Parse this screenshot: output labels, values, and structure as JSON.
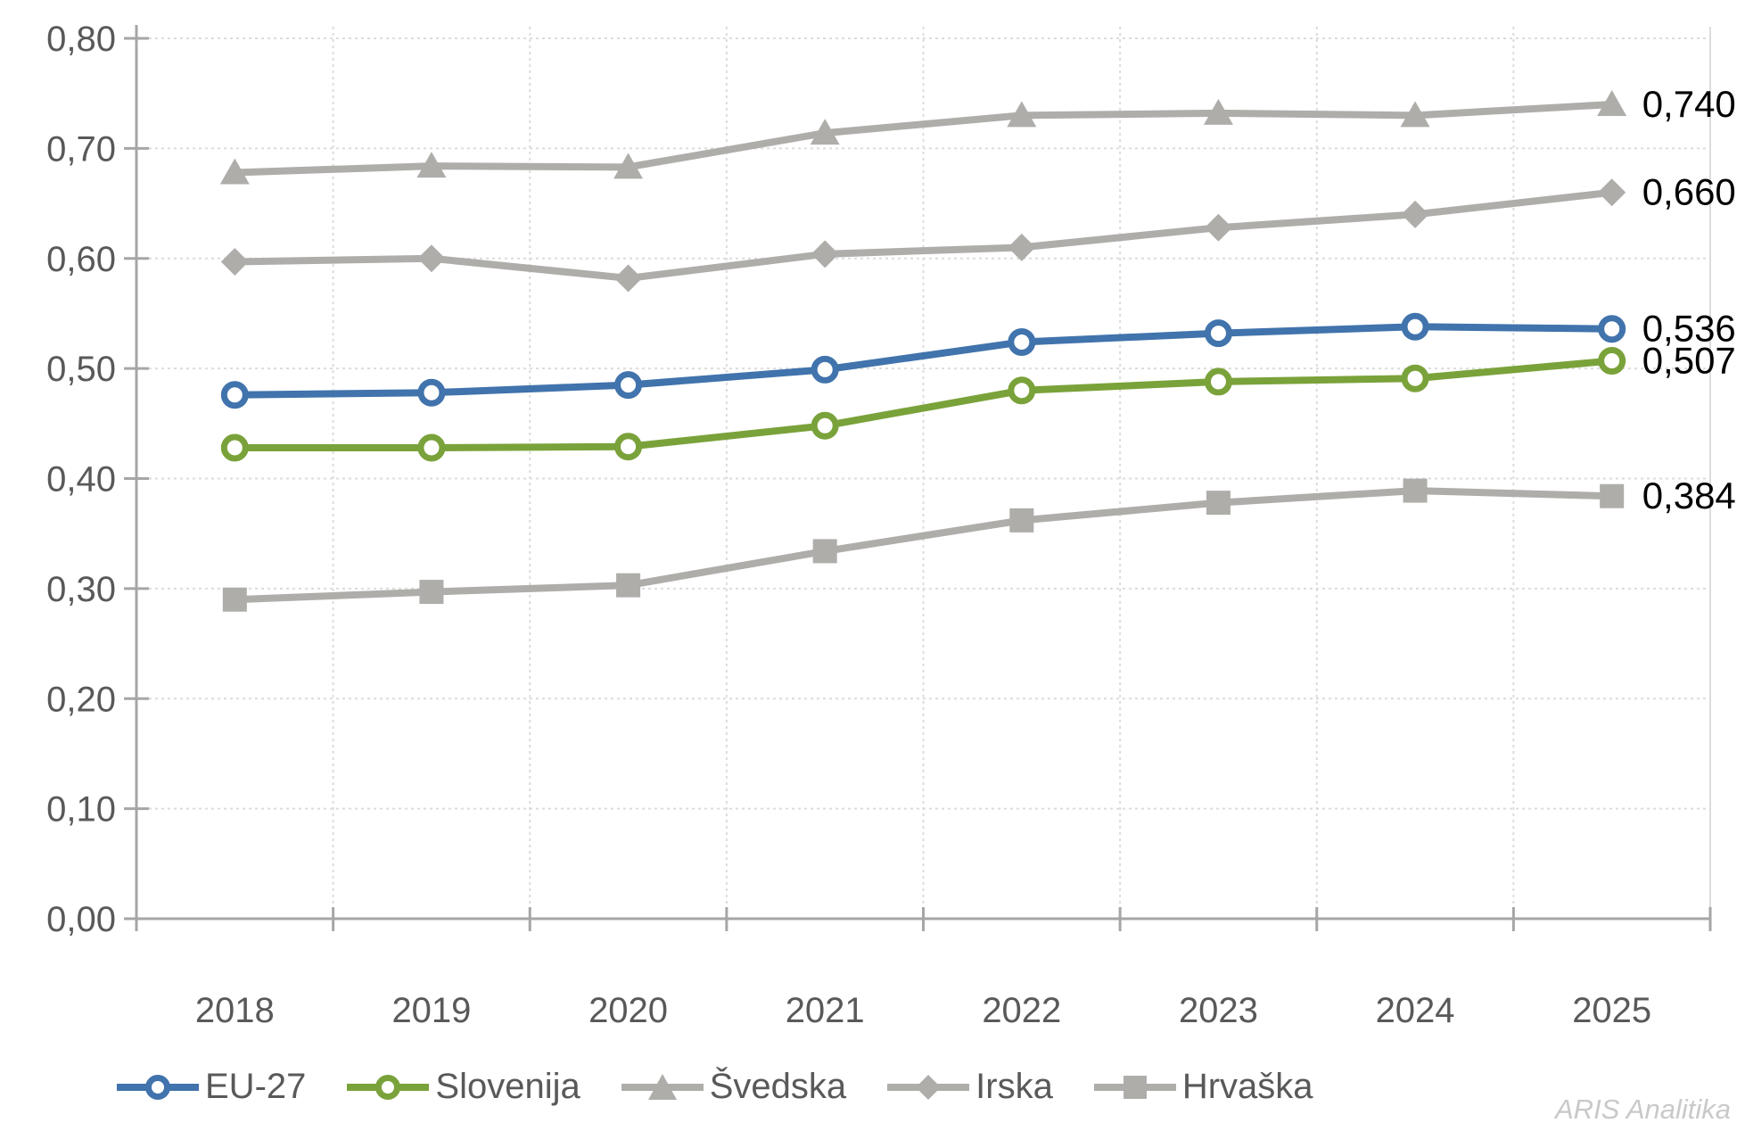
{
  "chart_data": {
    "type": "line",
    "categories": [
      "2018",
      "2019",
      "2020",
      "2021",
      "2022",
      "2023",
      "2024",
      "2025"
    ],
    "series": [
      {
        "name": "EU-27",
        "color": "#4173AC",
        "marker": "circle-open",
        "values": [
          0.476,
          0.478,
          0.485,
          0.499,
          0.524,
          0.532,
          0.538,
          0.536
        ],
        "end_label": "0,536"
      },
      {
        "name": "Slovenija",
        "color": "#7AA23A",
        "marker": "circle-open",
        "values": [
          0.428,
          0.428,
          0.429,
          0.448,
          0.48,
          0.488,
          0.491,
          0.507
        ],
        "end_label": "0,507"
      },
      {
        "name": "Švedska",
        "color": "#AFADAA",
        "marker": "triangle",
        "values": [
          0.678,
          0.684,
          0.683,
          0.714,
          0.73,
          0.732,
          0.73,
          0.74
        ],
        "end_label": "0,740"
      },
      {
        "name": "Irska",
        "color": "#AFADAA",
        "marker": "diamond",
        "values": [
          0.597,
          0.6,
          0.582,
          0.604,
          0.61,
          0.628,
          0.64,
          0.66
        ],
        "end_label": "0,660"
      },
      {
        "name": "Hrvaška",
        "color": "#AFADAA",
        "marker": "square",
        "values": [
          0.29,
          0.297,
          0.303,
          0.334,
          0.362,
          0.378,
          0.389,
          0.384
        ],
        "end_label": "0,384"
      }
    ],
    "ylim": [
      0.0,
      0.8
    ],
    "ytick_step": 0.1,
    "ytick_labels": [
      "0,00",
      "0,10",
      "0,20",
      "0,30",
      "0,40",
      "0,50",
      "0,60",
      "0,70",
      "0,80"
    ],
    "grid": "both",
    "legend_position": "bottom",
    "decimal_separator": ","
  },
  "watermark": "ARIS Analitika",
  "styles": {
    "axis_color": "#A6A6A6",
    "grid_color": "#DCDCDC",
    "tick_text_color": "#595959",
    "end_label_color": "#000000",
    "watermark_color": "#C9C9C9",
    "background": "#FFFFFF"
  }
}
